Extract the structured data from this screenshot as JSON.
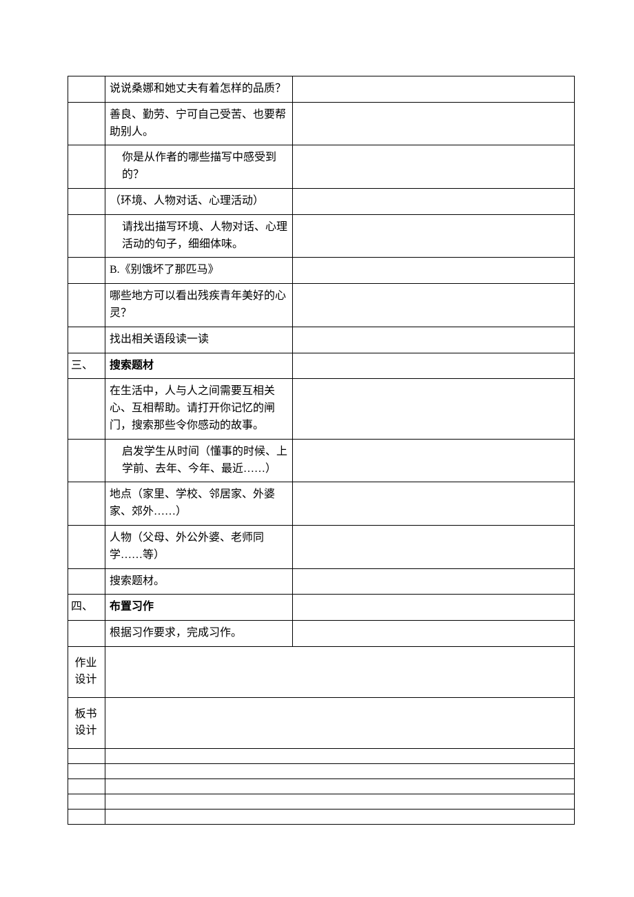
{
  "rows": [
    {
      "c1": "",
      "c2": "说说桑娜和她丈夫有着怎样的品质？",
      "c3": "",
      "indent": false,
      "bold": false
    },
    {
      "c1": "",
      "c2": "善良、勤劳、宁可自己受苦、也要帮助别人。",
      "c3": "",
      "indent": false,
      "bold": false
    },
    {
      "c1": "",
      "c2": "你是从作者的哪些描写中感受到的？",
      "c3": "",
      "indent": true,
      "bold": false
    },
    {
      "c1": "",
      "c2": "（环境、人物对话、心理活动）",
      "c3": "",
      "indent": false,
      "bold": false
    },
    {
      "c1": "",
      "c2": "请找出描写环境、人物对话、心理活动的句子，细细体味。",
      "c3": "",
      "indent": true,
      "bold": false
    },
    {
      "c1": "",
      "c2": "B.《别饿坏了那匹马》",
      "c3": "",
      "indent": false,
      "bold": false
    },
    {
      "c1": "",
      "c2": "哪些地方可以看出残疾青年美好的心灵？",
      "c3": "",
      "indent": false,
      "bold": false
    },
    {
      "c1": "",
      "c2": "找出相关语段读一读",
      "c3": "",
      "indent": false,
      "bold": false
    },
    {
      "c1": "三、",
      "c2": "搜索题材",
      "c3": "",
      "indent": false,
      "bold": true
    },
    {
      "c1": "",
      "c2": "在生活中，人与人之间需要互相关心、互相帮助。请打开你记忆的闸门，搜索那些令你感动的故事。",
      "c3": "",
      "indent": false,
      "bold": false
    },
    {
      "c1": "",
      "c2": "启发学生从时间（懂事的时候、上学前、去年、今年、最近……）",
      "c3": "",
      "indent": true,
      "bold": false
    },
    {
      "c1": "",
      "c2": "地点（家里、学校、邻居家、外婆家、郊外……）",
      "c3": "",
      "indent": false,
      "bold": false
    },
    {
      "c1": "",
      "c2": "人物（父母、外公外婆、老师同学……等）",
      "c3": "",
      "indent": false,
      "bold": false
    },
    {
      "c1": "",
      "c2": "搜索题材。",
      "c3": "",
      "indent": false,
      "bold": false
    },
    {
      "c1": "四、",
      "c2": "布置习作",
      "c3": "",
      "indent": false,
      "bold": true
    },
    {
      "c1": "",
      "c2": "根据习作要求，完成习作。",
      "c3": "",
      "indent": false,
      "bold": false
    }
  ],
  "labelRows": [
    {
      "label": "作业设计"
    },
    {
      "label": "板书设计"
    }
  ]
}
